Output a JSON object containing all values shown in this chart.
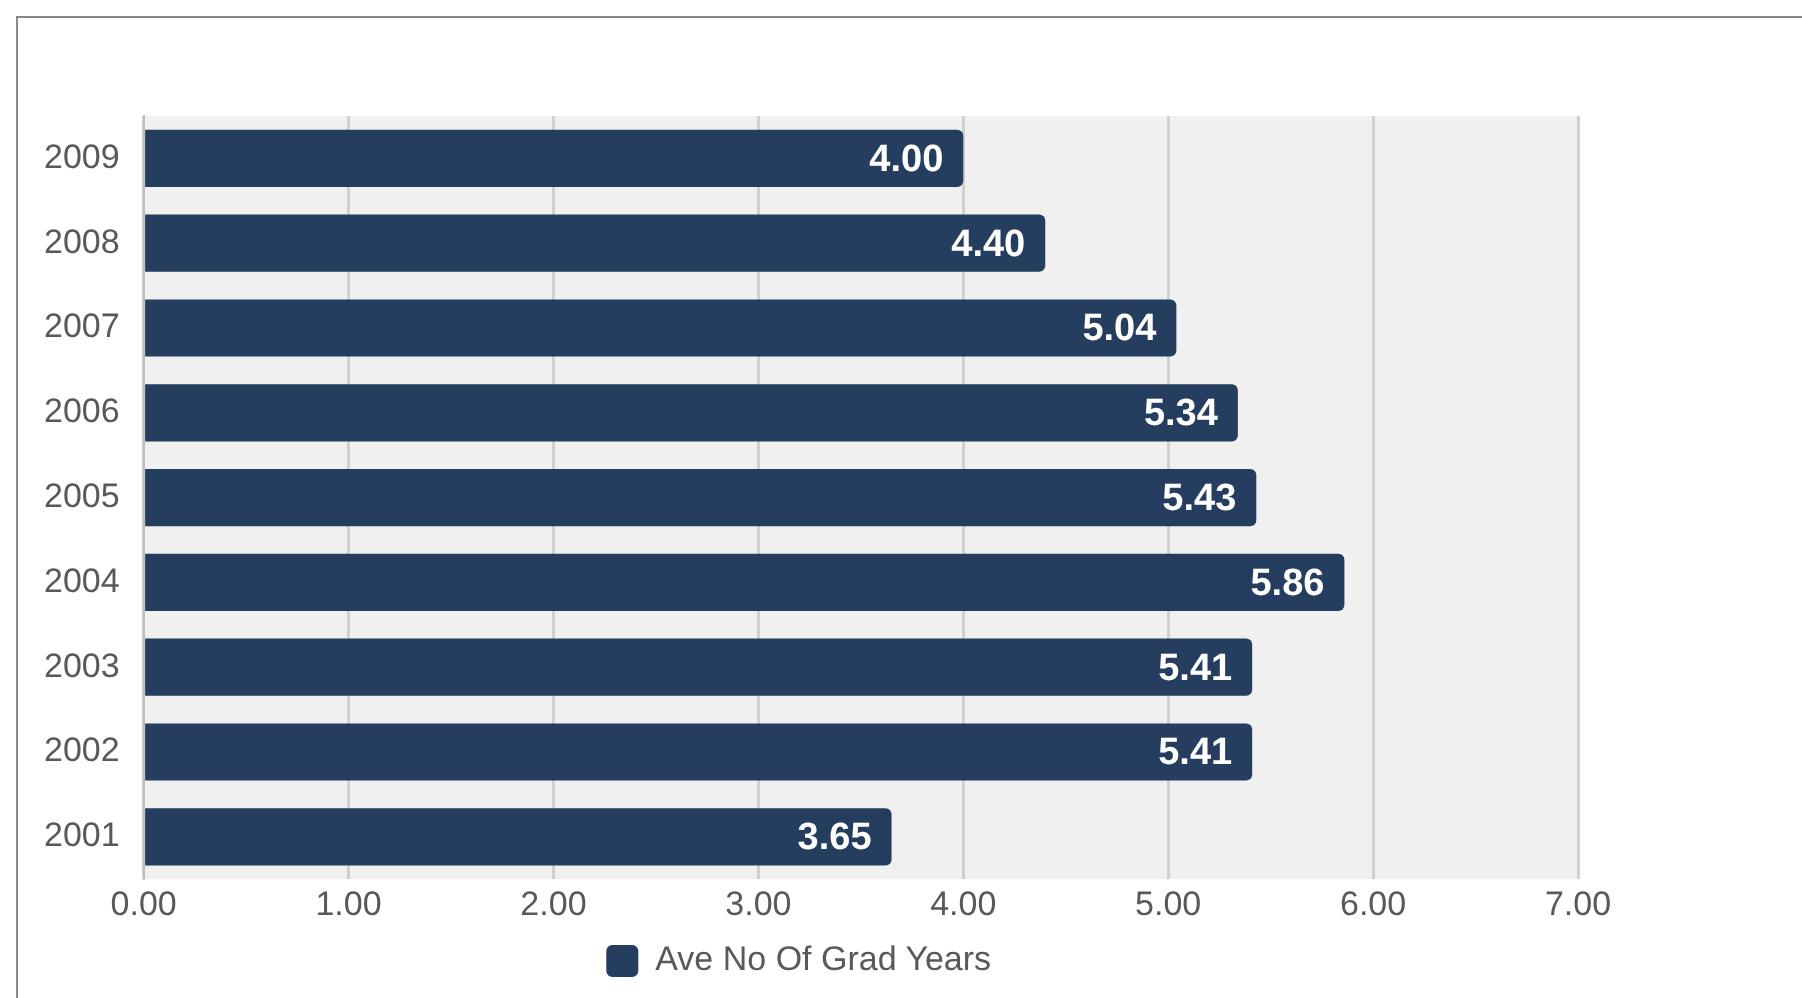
{
  "chart_data": {
    "type": "bar",
    "orientation": "horizontal",
    "categories": [
      "2009",
      "2008",
      "2007",
      "2006",
      "2005",
      "2004",
      "2003",
      "2002",
      "2001"
    ],
    "series": [
      {
        "name": "Ave No Of Grad Years",
        "color": "#253d5e",
        "values": [
          4.0,
          4.4,
          5.04,
          5.34,
          5.43,
          5.86,
          5.41,
          5.41,
          3.65
        ],
        "value_labels": [
          "4.00",
          "4.40",
          "5.04",
          "5.34",
          "5.43",
          "5.86",
          "5.41",
          "5.41",
          "3.65"
        ]
      }
    ],
    "xlim": [
      0,
      7
    ],
    "xticks": [
      {
        "value": 0,
        "label": "0.00"
      },
      {
        "value": 1,
        "label": "1.00"
      },
      {
        "value": 2,
        "label": "2.00"
      },
      {
        "value": 3,
        "label": "3.00"
      },
      {
        "value": 4,
        "label": "4.00"
      },
      {
        "value": 5,
        "label": "5.00"
      },
      {
        "value": 6,
        "label": "6.00"
      },
      {
        "value": 7,
        "label": "7.00"
      }
    ],
    "grid": "x",
    "legend": "bottom"
  }
}
